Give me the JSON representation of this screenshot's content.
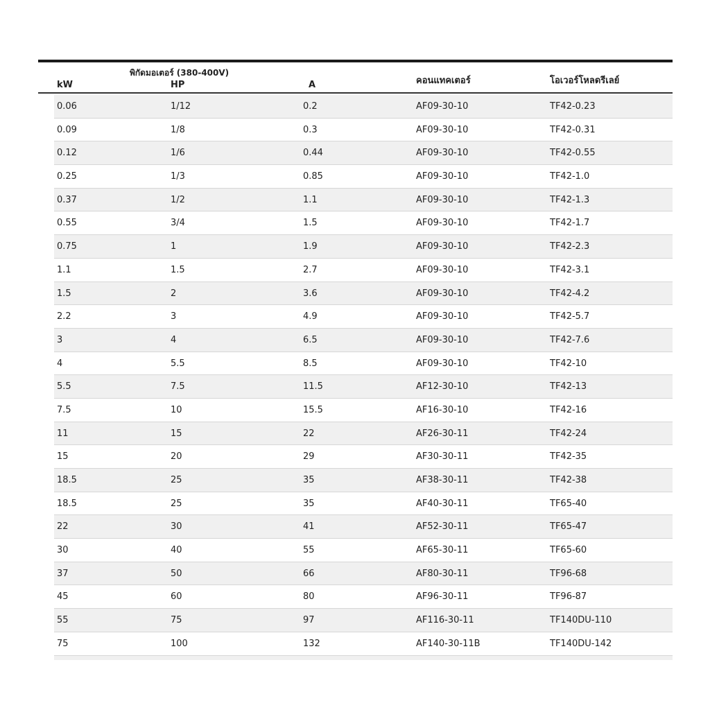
{
  "header": {
    "group": "พิกัดมอเตอร์ (380-400V)",
    "kw": "kW",
    "hp": "HP",
    "a": "A",
    "contactor": "คอนแทคเตอร์",
    "relay": "โอเวอร์โหลดรีเลย์"
  },
  "rows": [
    [
      "0.06",
      "1/12",
      "0.2",
      "AF09-30-10",
      "TF42-0.23"
    ],
    [
      "0.09",
      "1/8",
      "0.3",
      "AF09-30-10",
      "TF42-0.31"
    ],
    [
      "0.12",
      "1/6",
      "0.44",
      "AF09-30-10",
      "TF42-0.55"
    ],
    [
      "0.25",
      "1/3",
      "0.85",
      "AF09-30-10",
      "TF42-1.0"
    ],
    [
      "0.37",
      "1/2",
      "1.1",
      "AF09-30-10",
      "TF42-1.3"
    ],
    [
      "0.55",
      "3/4",
      "1.5",
      "AF09-30-10",
      "TF42-1.7"
    ],
    [
      "0.75",
      "1",
      "1.9",
      "AF09-30-10",
      "TF42-2.3"
    ],
    [
      "1.1",
      "1.5",
      "2.7",
      "AF09-30-10",
      "TF42-3.1"
    ],
    [
      "1.5",
      "2",
      "3.6",
      "AF09-30-10",
      "TF42-4.2"
    ],
    [
      "2.2",
      "3",
      "4.9",
      "AF09-30-10",
      "TF42-5.7"
    ],
    [
      "3",
      "4",
      "6.5",
      "AF09-30-10",
      "TF42-7.6"
    ],
    [
      "4",
      "5.5",
      "8.5",
      "AF09-30-10",
      "TF42-10"
    ],
    [
      "5.5",
      "7.5",
      "11.5",
      "AF12-30-10",
      "TF42-13"
    ],
    [
      "7.5",
      "10",
      "15.5",
      "AF16-30-10",
      "TF42-16"
    ],
    [
      "11",
      "15",
      "22",
      "AF26-30-11",
      "TF42-24"
    ],
    [
      "15",
      "20",
      "29",
      "AF30-30-11",
      "TF42-35"
    ],
    [
      "18.5",
      "25",
      "35",
      "AF38-30-11",
      "TF42-38"
    ],
    [
      "18.5",
      "25",
      "35",
      "AF40-30-11",
      "TF65-40"
    ],
    [
      "22",
      "30",
      "41",
      "AF52-30-11",
      "TF65-47"
    ],
    [
      "30",
      "40",
      "55",
      "AF65-30-11",
      "TF65-60"
    ],
    [
      "37",
      "50",
      "66",
      "AF80-30-11",
      "TF96-68"
    ],
    [
      "45",
      "60",
      "80",
      "AF96-30-11",
      "TF96-87"
    ],
    [
      "55",
      "75",
      "97",
      "AF116-30-11",
      "TF140DU-110"
    ],
    [
      "75",
      "100",
      "132",
      "AF140-30-11B",
      "TF140DU-142"
    ]
  ]
}
